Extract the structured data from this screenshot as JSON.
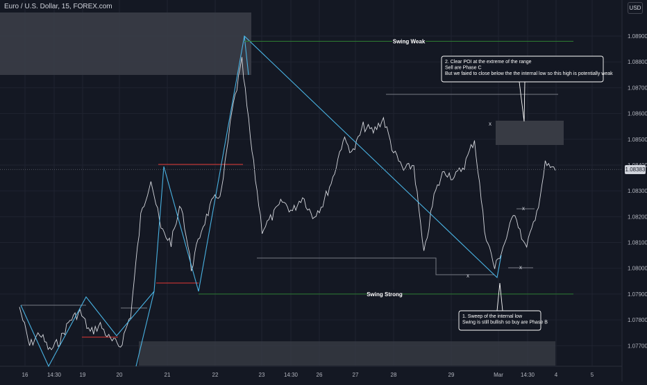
{
  "header": {
    "symbol": "Euro / U.S. Dollar, 15, FOREX.com",
    "currency": "USD"
  },
  "colors": {
    "background": "#141823",
    "zone": "#3a3d47",
    "swing_line": "#4fc3f7",
    "level_line": "#2e7d32",
    "red_line": "#e53935",
    "price": "#e6e8ee",
    "grid": "#1f2330"
  },
  "chart_data": {
    "type": "line",
    "title": "",
    "xlabel": "",
    "ylabel": "",
    "x_ticks": [
      "16",
      "14:30",
      "19",
      "20",
      "21",
      "22",
      "23",
      "14:30",
      "26",
      "27",
      "28",
      "29",
      "Mar",
      "14:30",
      "4",
      "5"
    ],
    "y_ticks": [
      1.077,
      1.078,
      1.079,
      1.08,
      1.081,
      1.082,
      1.083,
      1.084,
      1.085,
      1.086,
      1.087,
      1.088,
      1.089
    ],
    "y_tick_labels": [
      "1.07700",
      "1.07800",
      "1.07900",
      "1.08000",
      "1.08100",
      "1.08200",
      "1.08300",
      "1.08400",
      "1.08500",
      "1.08600",
      "1.08700",
      "1.08800",
      "1.08900"
    ],
    "ylim": [
      1.0762,
      1.0904
    ],
    "current_price": 1.08383,
    "current_price_label": "1.08383",
    "price_series": {
      "name": "",
      "points": [
        [
          "16",
          1.0785
        ],
        [
          " ",
          1.077
        ],
        [
          " ",
          1.0775
        ],
        [
          "14:30",
          1.0768
        ],
        [
          " ",
          1.0772
        ],
        [
          "19",
          1.078
        ],
        [
          " ",
          1.0783
        ],
        [
          " ",
          1.0775
        ],
        [
          " ",
          1.0778
        ],
        [
          "20",
          1.0772
        ],
        [
          " ",
          1.077
        ],
        [
          " ",
          1.0782
        ],
        [
          "21",
          1.082
        ],
        [
          " ",
          1.0835
        ],
        [
          " ",
          1.0815
        ],
        [
          " ",
          1.081
        ],
        [
          " ",
          1.0825
        ],
        [
          " ",
          1.08
        ],
        [
          " ",
          1.0815
        ],
        [
          "22",
          1.0825
        ],
        [
          " ",
          1.083
        ],
        [
          " ",
          1.086
        ],
        [
          " ",
          1.088
        ],
        [
          " ",
          1.0845
        ],
        [
          "23",
          1.0815
        ],
        [
          " ",
          1.082
        ],
        [
          " ",
          1.0826
        ],
        [
          " ",
          1.0822
        ],
        [
          "14:30",
          1.0828
        ],
        [
          " ",
          1.082
        ],
        [
          "26",
          1.0825
        ],
        [
          " ",
          1.0835
        ],
        [
          " ",
          1.085
        ],
        [
          "27",
          1.0845
        ],
        [
          " ",
          1.0855
        ],
        [
          " ",
          1.0853
        ],
        [
          "28",
          1.0858
        ],
        [
          " ",
          1.0845
        ],
        [
          " ",
          1.0838
        ],
        [
          " ",
          1.084
        ],
        [
          "29",
          1.0805
        ],
        [
          " ",
          1.0828
        ],
        [
          " ",
          1.0838
        ],
        [
          " ",
          1.0835
        ],
        [
          " ",
          1.084
        ],
        [
          " ",
          1.085
        ],
        [
          "Mar",
          1.0815
        ],
        [
          " ",
          1.08
        ],
        [
          " ",
          1.081
        ],
        [
          " ",
          1.0822
        ],
        [
          " ",
          1.0808
        ],
        [
          "14:30",
          1.0818
        ],
        [
          " ",
          1.084
        ],
        [
          "4",
          1.0838
        ]
      ]
    },
    "levels": [
      {
        "label": "Swing Weak",
        "value": 1.0888
      },
      {
        "label": "Swing Strong",
        "value": 1.079
      }
    ],
    "markers": [
      "x",
      "x",
      "x",
      "x"
    ],
    "annotations": [
      {
        "lines": [
          "2. Clear POI at the extreme of the range",
          "Sell are Phase C",
          "But we faied to close below the the internal low so this high is potentially weak"
        ]
      },
      {
        "lines": [
          "1. Sweep of the internal low",
          "Swing is still bullish so buy are Phase B"
        ]
      }
    ]
  }
}
